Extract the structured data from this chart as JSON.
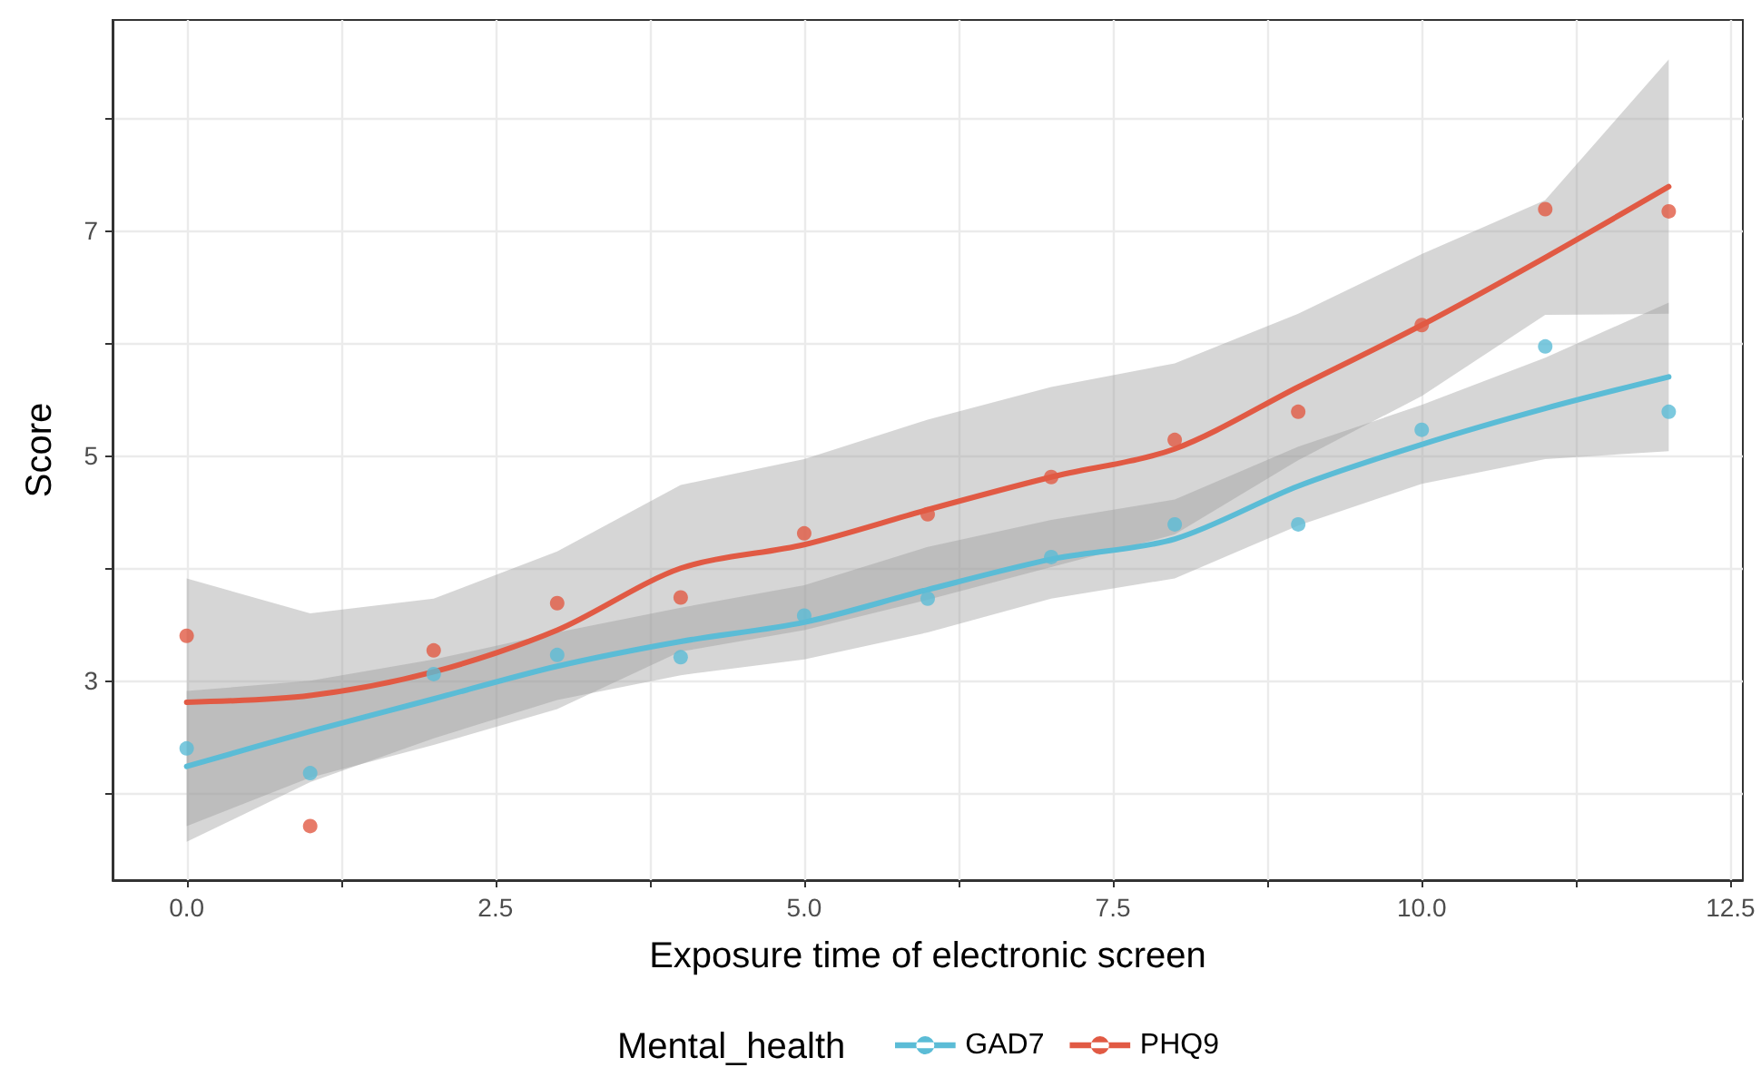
{
  "chart_data": {
    "type": "scatter",
    "xlabel": "Exposure time of electronic screen",
    "ylabel": "Score",
    "legend_title": "Mental_health",
    "legend": "bottom",
    "grid": true,
    "marker": "circle",
    "xlim": [
      -0.6,
      12.6
    ],
    "ylim": [
      1.23,
      8.87
    ],
    "xticks": [
      {
        "value": 0,
        "label": "0.0"
      },
      {
        "value": 1.25,
        "label": null
      },
      {
        "value": 2.5,
        "label": "2.5"
      },
      {
        "value": 3.75,
        "label": null
      },
      {
        "value": 5,
        "label": "5.0"
      },
      {
        "value": 6.25,
        "label": null
      },
      {
        "value": 7.5,
        "label": "7.5"
      },
      {
        "value": 8.75,
        "label": null
      },
      {
        "value": 10,
        "label": "10.0"
      },
      {
        "value": 11.25,
        "label": null
      },
      {
        "value": 12.5,
        "label": "12.5"
      }
    ],
    "yticks": [
      {
        "value": 2,
        "label": null
      },
      3,
      {
        "value": 4,
        "label": null
      },
      5,
      {
        "value": 6,
        "label": null
      },
      7,
      {
        "value": 8,
        "label": null
      }
    ],
    "series": [
      {
        "type": "line",
        "name": "GAD7",
        "color": "#5bbcd6",
        "marker": "none",
        "line_style": "solid",
        "x": [
          0,
          1,
          2,
          3,
          4,
          5,
          6,
          7,
          8,
          9,
          10,
          11,
          12
        ],
        "values": [
          2.24,
          2.55,
          2.84,
          3.13,
          3.35,
          3.52,
          3.81,
          4.08,
          4.26,
          4.73,
          5.1,
          5.42,
          5.7
        ],
        "lower": [
          1.57,
          2.1,
          2.49,
          2.83,
          3.05,
          3.19,
          3.43,
          3.73,
          3.91,
          4.38,
          4.75,
          4.97,
          5.04
        ],
        "upper": [
          2.91,
          3.0,
          3.19,
          3.43,
          3.65,
          3.85,
          4.19,
          4.43,
          4.61,
          5.08,
          5.45,
          5.87,
          6.36
        ]
      },
      {
        "type": "line",
        "name": "PHQ9",
        "color": "#e15a44",
        "marker": "none",
        "line_style": "solid",
        "x": [
          0,
          1,
          2,
          3,
          4,
          5,
          6,
          7,
          8,
          9,
          10,
          11,
          12
        ],
        "values": [
          2.81,
          2.87,
          3.08,
          3.45,
          4.0,
          4.21,
          4.52,
          4.81,
          5.06,
          5.61,
          6.16,
          6.76,
          7.39
        ],
        "lower": [
          1.71,
          2.14,
          2.43,
          2.75,
          3.26,
          3.45,
          3.72,
          4.01,
          4.3,
          4.96,
          5.53,
          6.25,
          6.26
        ],
        "upper": [
          3.91,
          3.6,
          3.73,
          4.15,
          4.74,
          4.97,
          5.32,
          5.61,
          5.82,
          6.26,
          6.79,
          7.27,
          8.52
        ]
      },
      {
        "color": "#5bbcd6",
        "x": [
          0,
          1,
          2,
          3,
          4,
          5,
          6,
          7,
          8,
          9,
          10,
          11,
          12
        ],
        "values": [
          2.4,
          2.18,
          3.06,
          3.23,
          3.21,
          3.58,
          3.73,
          4.1,
          4.39,
          4.39,
          5.23,
          5.97,
          5.39
        ]
      },
      {
        "color": "#e15a44",
        "x": [
          0,
          1,
          2,
          3,
          4,
          5,
          6,
          7,
          8,
          9,
          10,
          11,
          12
        ],
        "values": [
          3.4,
          1.71,
          3.27,
          3.69,
          3.74,
          4.31,
          4.48,
          4.81,
          5.14,
          5.39,
          6.16,
          7.19,
          7.17
        ]
      }
    ]
  }
}
